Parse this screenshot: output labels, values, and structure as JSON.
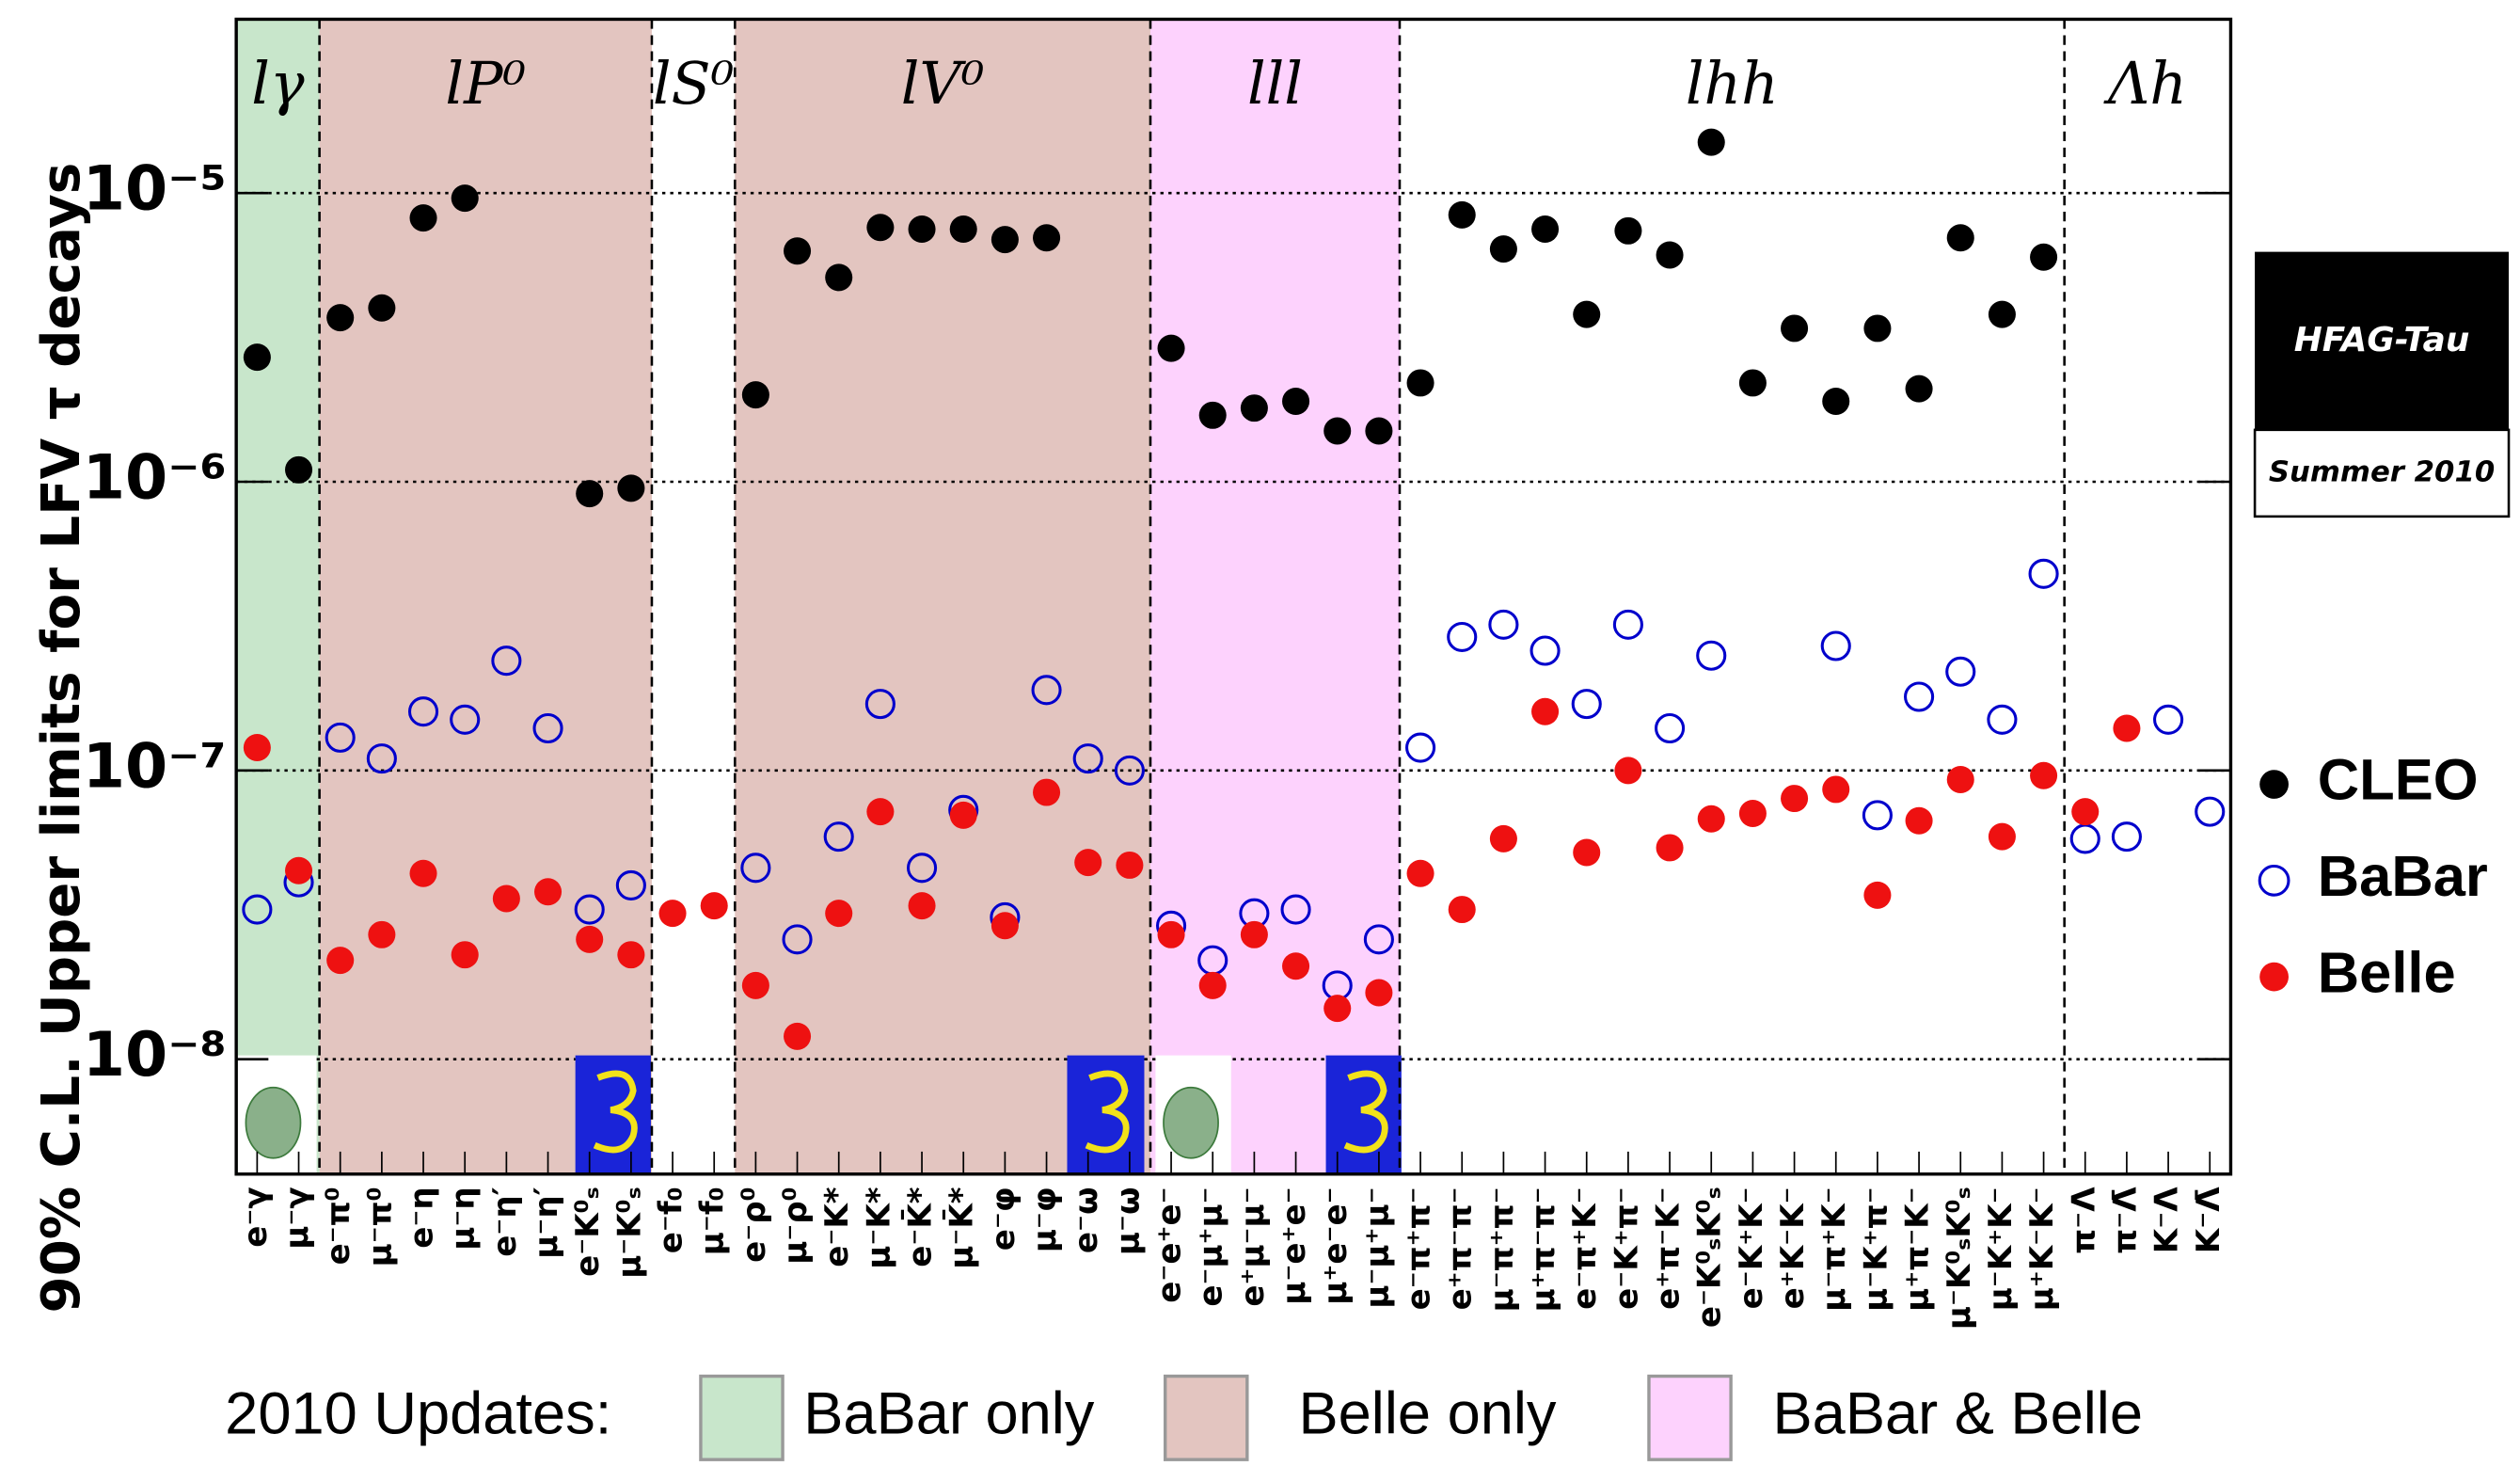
{
  "chart_data": {
    "type": "scatter",
    "y_label": "90% C.L. Upper limits for LFV τ decays",
    "log_y": true,
    "grid": true,
    "ylim": [
      4e-09,
      4e-05
    ],
    "yticks": [
      {
        "value": 1e-08,
        "label": "10⁻⁸"
      },
      {
        "value": 1e-07,
        "label": "10⁻⁷"
      },
      {
        "value": 1e-06,
        "label": "10⁻⁶"
      },
      {
        "value": 1e-05,
        "label": "10⁻⁵"
      }
    ],
    "groups": [
      {
        "label": "lγ",
        "color": "#c8e6cb",
        "categories": [
          "e⁻γ",
          "μ⁻γ"
        ]
      },
      {
        "label": "lP⁰",
        "color": "#e3c5c0",
        "categories": [
          "e⁻π⁰",
          "μ⁻π⁰",
          "e⁻η",
          "μ⁻η",
          "e⁻η′",
          "μ⁻η′",
          "e⁻K⁰ₛ",
          "μ⁻K⁰ₛ"
        ]
      },
      {
        "label": "lS⁰",
        "color": null,
        "categories": [
          "e⁻f₀",
          "μ⁻f₀"
        ]
      },
      {
        "label": "lV⁰",
        "color": "#e3c5c0",
        "categories": [
          "e⁻ρ⁰",
          "μ⁻ρ⁰",
          "e⁻K*",
          "μ⁻K*",
          "e⁻K̄*",
          "μ⁻K̄*",
          "e⁻φ",
          "μ⁻φ",
          "e⁻ω",
          "μ⁻ω"
        ]
      },
      {
        "label": "lll",
        "color": "#fdd2fd",
        "categories": [
          "e⁻e⁺e⁻",
          "e⁻μ⁺μ⁻",
          "e⁺μ⁻μ⁻",
          "μ⁻e⁺e⁻",
          "μ⁺e⁻e⁻",
          "μ⁻μ⁺μ⁻"
        ]
      },
      {
        "label": "lhh",
        "color": null,
        "categories": [
          "e⁻π⁺π⁻",
          "e⁺π⁻π⁻",
          "μ⁻π⁺π⁻",
          "μ⁺π⁻π⁻",
          "e⁻π⁺K⁻",
          "e⁻K⁺π⁻",
          "e⁺π⁻K⁻",
          "e⁻K⁰ₛK⁰ₛ",
          "e⁻K⁺K⁻",
          "e⁺K⁻K⁻",
          "μ⁻π⁺K⁻",
          "μ⁻K⁺π⁻",
          "μ⁺π⁻K⁻",
          "μ⁻K⁰ₛK⁰ₛ",
          "μ⁻K⁺K⁻",
          "μ⁺K⁻K⁻"
        ]
      },
      {
        "label": "Λh",
        "color": null,
        "categories": [
          "π⁻Λ",
          "π⁻Λ̄",
          "K⁻Λ",
          "K⁻Λ̄"
        ]
      }
    ],
    "series": [
      {
        "name": "CLEO",
        "color": "#000000",
        "marker": "filled",
        "values": [
          2.7e-06,
          1.1e-06,
          3.7e-06,
          4e-06,
          8.2e-06,
          9.6e-06,
          null,
          null,
          9.1e-07,
          9.5e-07,
          null,
          null,
          2e-06,
          6.3e-06,
          5.1e-06,
          7.6e-06,
          7.5e-06,
          7.5e-06,
          6.9e-06,
          7e-06,
          null,
          null,
          2.9e-06,
          1.7e-06,
          1.8e-06,
          1.9e-06,
          1.5e-06,
          1.5e-06,
          2.2e-06,
          8.4e-06,
          6.4e-06,
          7.5e-06,
          3.8e-06,
          7.4e-06,
          6.1e-06,
          1.5e-05,
          2.2e-06,
          3.4e-06,
          1.9e-06,
          3.4e-06,
          2.1e-06,
          7e-06,
          3.8e-06,
          6e-06,
          null,
          null,
          null,
          null
        ]
      },
      {
        "name": "BaBar",
        "color": "#0000cc",
        "marker": "open",
        "values": [
          3.3e-08,
          4.1e-08,
          1.3e-07,
          1.1e-07,
          1.6e-07,
          1.5e-07,
          2.4e-07,
          1.4e-07,
          3.3e-08,
          4e-08,
          null,
          null,
          4.6e-08,
          2.6e-08,
          5.9e-08,
          1.7e-07,
          4.6e-08,
          7.3e-08,
          3.1e-08,
          1.9e-07,
          1.1e-07,
          1e-07,
          2.9e-08,
          2.2e-08,
          3.2e-08,
          3.3e-08,
          1.8e-08,
          2.6e-08,
          1.2e-07,
          2.9e-07,
          3.2e-07,
          2.6e-07,
          1.7e-07,
          3.2e-07,
          1.4e-07,
          2.5e-07,
          null,
          null,
          2.7e-07,
          7e-08,
          1.8e-07,
          2.2e-07,
          1.5e-07,
          4.8e-07,
          5.8e-08,
          5.9e-08,
          1.5e-07,
          7.2e-08
        ]
      },
      {
        "name": "Belle",
        "color": "#ee1111",
        "marker": "filled",
        "values": [
          1.2e-07,
          4.5e-08,
          2.2e-08,
          2.7e-08,
          4.4e-08,
          2.3e-08,
          3.6e-08,
          3.8e-08,
          2.6e-08,
          2.3e-08,
          3.2e-08,
          3.4e-08,
          1.8e-08,
          1.2e-08,
          3.2e-08,
          7.2e-08,
          3.4e-08,
          7e-08,
          2.9e-08,
          8.4e-08,
          4.8e-08,
          4.7e-08,
          2.7e-08,
          1.8e-08,
          2.7e-08,
          2.1e-08,
          1.5e-08,
          1.7e-08,
          4.4e-08,
          3.3e-08,
          5.8e-08,
          1.6e-07,
          5.2e-08,
          1e-07,
          5.4e-08,
          6.8e-08,
          7.1e-08,
          8e-08,
          8.6e-08,
          3.7e-08,
          6.7e-08,
          9.3e-08,
          5.9e-08,
          9.6e-08,
          7.2e-08,
          1.4e-07,
          null,
          null
        ]
      }
    ],
    "legend": "right",
    "badge": {
      "title": "HFAG-Tau",
      "subtitle": "Summer 2010"
    },
    "updates": {
      "title": "2010 Updates:",
      "items": [
        {
          "label": "BaBar only",
          "color": "#c8e6cb"
        },
        {
          "label": "Belle only",
          "color": "#e3c5c0"
        },
        {
          "label": "BaBar & Belle",
          "color": "#fdd2fd"
        }
      ]
    }
  }
}
